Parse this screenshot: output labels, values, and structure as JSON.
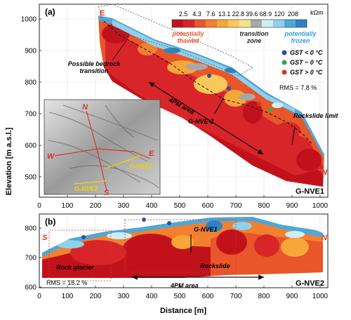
{
  "panel_a": {
    "label": "(a)",
    "corner_label": "G-NVE1",
    "rms": "RMS = 7.8 %",
    "y_ticks": [
      "1000",
      "900",
      "800",
      "700",
      "600",
      "500"
    ],
    "x_ticks": [
      "0",
      "100",
      "200",
      "300",
      "400",
      "500",
      "600",
      "700",
      "800",
      "900",
      "1000"
    ],
    "end_left": "E",
    "end_right": "W",
    "annotations": {
      "bedrock": "Possible bedrock transition",
      "area": "4PM area",
      "crossline": "G-NVE-2",
      "rockslide_limit": "Rockslide limit"
    },
    "colorbar": {
      "ticks": [
        "2.5",
        "4.3",
        "7.6",
        "13.1",
        "22.8",
        "39.6",
        "68.9",
        "120",
        "208"
      ],
      "unit": "kΩm",
      "colors": [
        "#c1121c",
        "#d8252a",
        "#e8562a",
        "#f2802e",
        "#f7a63a",
        "#f9c858",
        "#f6e28a",
        "#a8a8a8",
        "#cfeef4",
        "#8fd1ec",
        "#4aa9db",
        "#2f82c2"
      ],
      "label_thawed": "potentially thawed",
      "label_transition": "transition zone",
      "label_frozen": "potentially frozen",
      "color_thawed": "#e8562a",
      "color_frozen": "#2f9fd8"
    },
    "legend": [
      {
        "label": "GST < 0 °C",
        "color": "#2c4fa3"
      },
      {
        "label": "GST ~ 0 °C",
        "color": "#3aa84a"
      },
      {
        "label": "GST > 0 °C",
        "color": "#d7342b"
      }
    ],
    "map": {
      "n": "N",
      "s": "S",
      "w": "W",
      "e": "E",
      "line1": "G-NVE1",
      "line2": "G-NVE2"
    }
  },
  "panel_b": {
    "label": "(b)",
    "corner_label": "G-NVE2",
    "rms": "RMS = 18.2 %",
    "y_ticks": [
      "800",
      "700",
      "600"
    ],
    "x_ticks": [
      "0",
      "100",
      "200",
      "300",
      "400",
      "500",
      "600",
      "700",
      "800",
      "900",
      "1000"
    ],
    "end_left": "S",
    "end_right": "N",
    "annotations": {
      "rock_glacier": "Rock glacier",
      "area": "4PM area",
      "crossline": "G-NVE1",
      "rockslide": "Rockslide"
    }
  },
  "axes": {
    "ylabel": "Elevation [m a.s.l.]",
    "xlabel": "Distance [m]"
  }
}
